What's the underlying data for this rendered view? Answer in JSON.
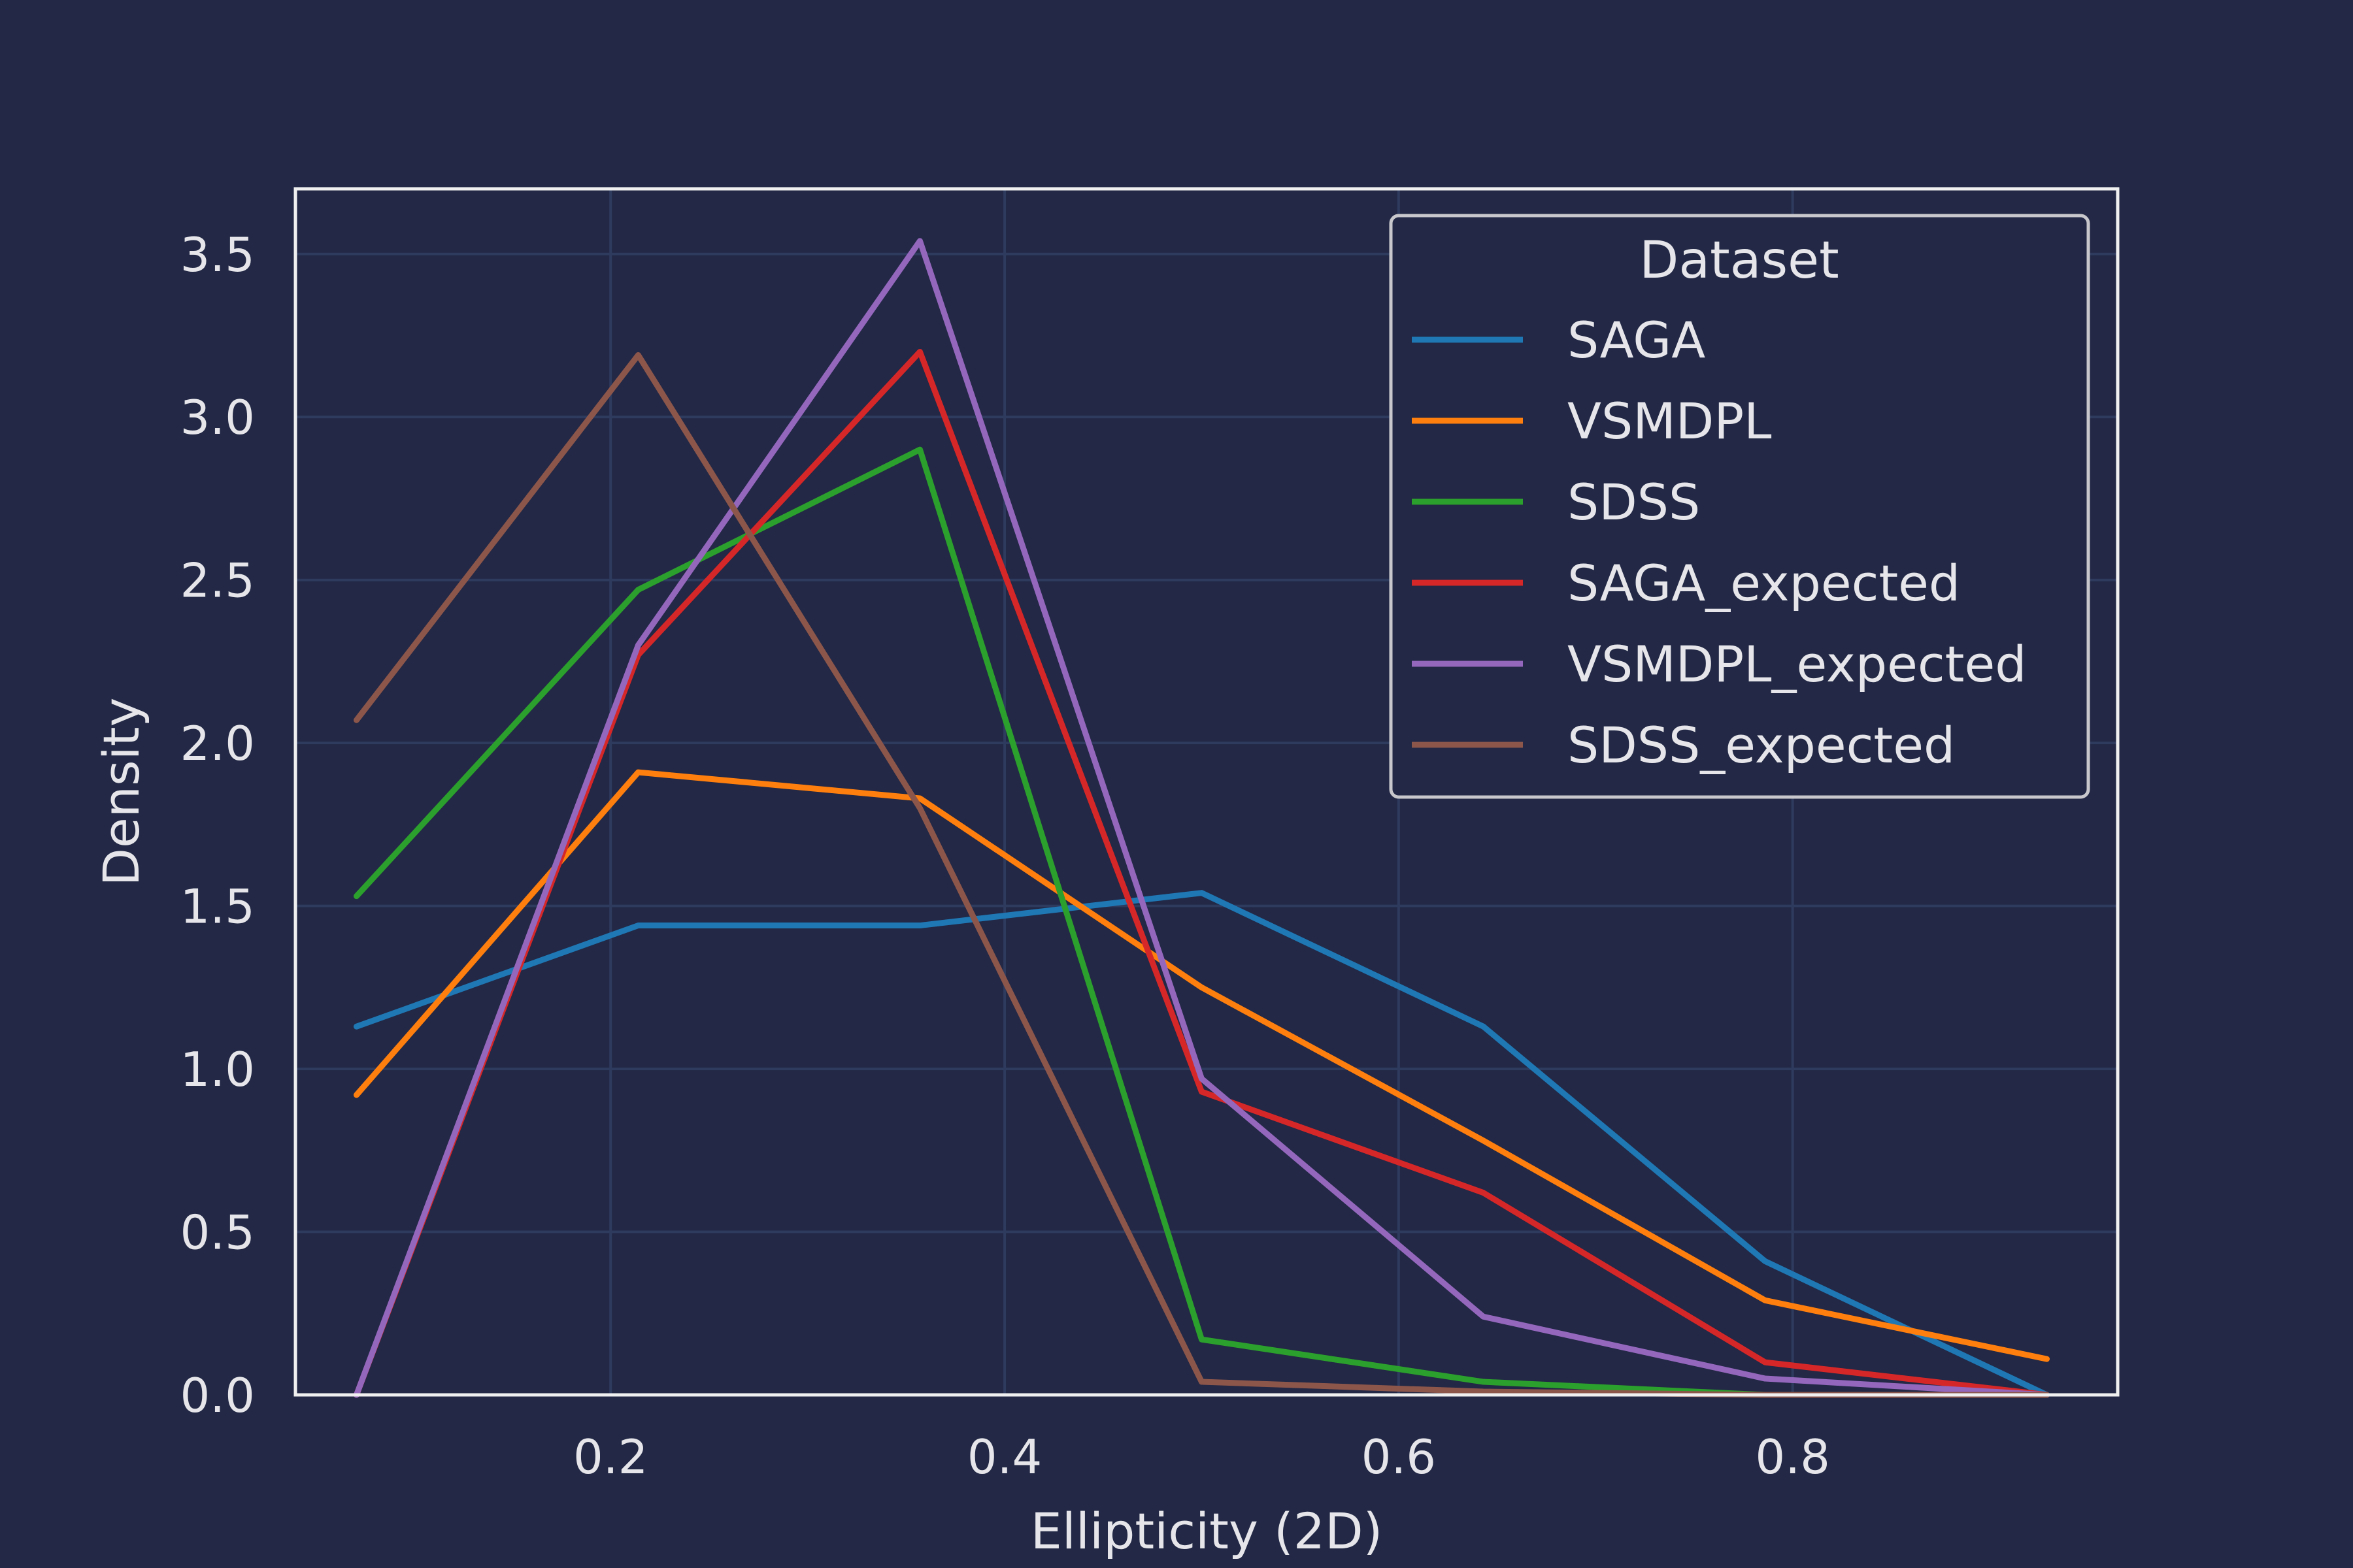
{
  "chart_data": {
    "type": "line",
    "xlabel": "Ellipticity (2D)",
    "ylabel": "Density",
    "xlim": [
      0.04,
      0.965
    ],
    "ylim": [
      0.0,
      3.7
    ],
    "xticks": [
      0.2,
      0.4,
      0.6,
      0.8
    ],
    "xtick_labels": [
      "0.2",
      "0.4",
      "0.6",
      "0.8"
    ],
    "yticks": [
      0.0,
      0.5,
      1.0,
      1.5,
      2.0,
      2.5,
      3.0,
      3.5
    ],
    "ytick_labels": [
      "0.0",
      "0.5",
      "1.0",
      "1.5",
      "2.0",
      "2.5",
      "3.0",
      "3.5"
    ],
    "grid": true,
    "legend": {
      "title": "Dataset",
      "position": "top-right"
    },
    "x": [
      0.071,
      0.214,
      0.357,
      0.5,
      0.643,
      0.786,
      0.929
    ],
    "series": [
      {
        "name": "SAGA",
        "color": "#1f77b4",
        "values": [
          1.13,
          1.44,
          1.44,
          1.54,
          1.13,
          0.41,
          0.0
        ]
      },
      {
        "name": "VSMDPL",
        "color": "#ff7f0e",
        "values": [
          0.92,
          1.91,
          1.83,
          1.25,
          0.78,
          0.29,
          0.11
        ]
      },
      {
        "name": "SDSS",
        "color": "#2ca02c",
        "values": [
          1.53,
          2.47,
          2.9,
          0.17,
          0.04,
          0.0,
          0.0
        ]
      },
      {
        "name": "SAGA_expected",
        "color": "#d62728",
        "values": [
          0.0,
          2.27,
          3.2,
          0.93,
          0.62,
          0.1,
          0.0
        ]
      },
      {
        "name": "VSMDPL_expected",
        "color": "#9467bd",
        "values": [
          0.0,
          2.3,
          3.54,
          0.97,
          0.24,
          0.05,
          0.0
        ]
      },
      {
        "name": "SDSS_expected",
        "color": "#8c564b",
        "values": [
          2.07,
          3.19,
          1.8,
          0.04,
          0.01,
          0.0,
          0.0
        ]
      }
    ]
  }
}
